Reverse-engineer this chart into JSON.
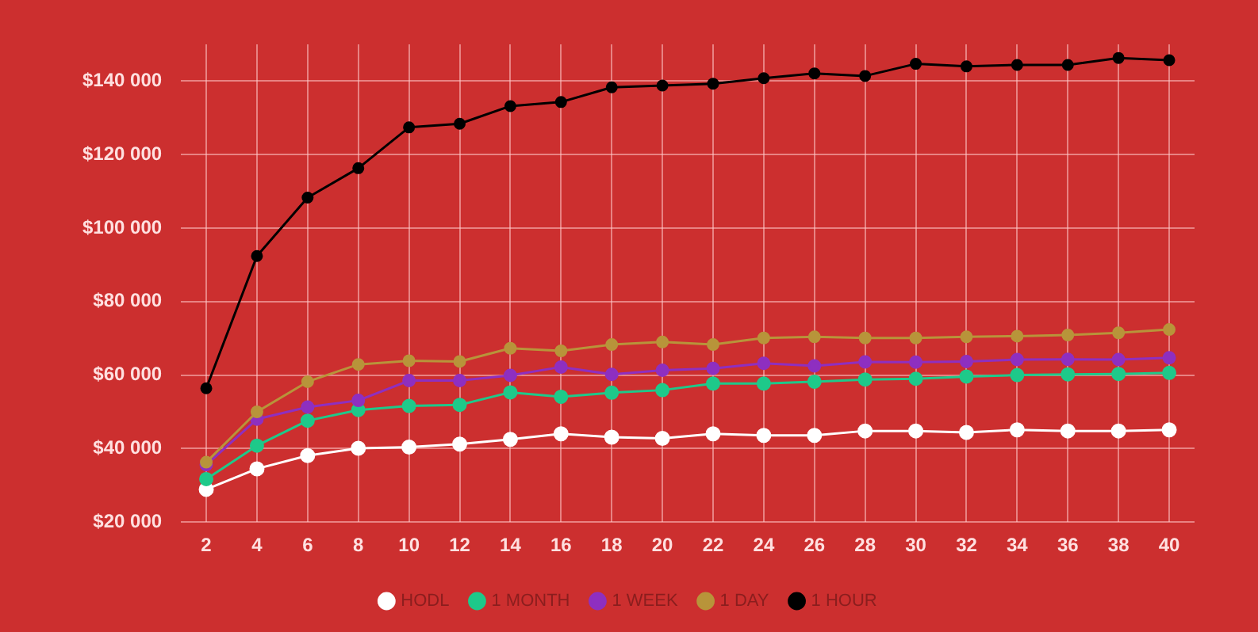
{
  "chart_data": {
    "type": "line",
    "x": [
      2,
      4,
      6,
      8,
      10,
      12,
      14,
      16,
      18,
      20,
      22,
      24,
      26,
      28,
      30,
      32,
      34,
      36,
      38,
      40
    ],
    "xlim": [
      1,
      41
    ],
    "xticks": [
      2,
      4,
      6,
      8,
      10,
      12,
      14,
      16,
      18,
      20,
      22,
      24,
      26,
      28,
      30,
      32,
      34,
      36,
      38,
      40
    ],
    "ylim": [
      20000,
      150000
    ],
    "yticks": [
      {
        "value": 20000,
        "label": "$20 000"
      },
      {
        "value": 40000,
        "label": "$40 000"
      },
      {
        "value": 60000,
        "label": "$60 000"
      },
      {
        "value": 80000,
        "label": "$80 000"
      },
      {
        "value": 100000,
        "label": "$100 000"
      },
      {
        "value": 120000,
        "label": "$120 000"
      },
      {
        "value": 140000,
        "label": "$140 000"
      }
    ],
    "grid": true,
    "legend": "bottom",
    "marker": "circle",
    "line_style": "solid",
    "series": [
      {
        "name": "HODL",
        "color": "#ffffff",
        "values": [
          28900,
          34500,
          38100,
          40100,
          40400,
          41200,
          42500,
          44000,
          43100,
          42800,
          44000,
          43600,
          43600,
          44800,
          44800,
          44400,
          45100,
          44800,
          44800,
          45100
        ]
      },
      {
        "name": "1 MONTH",
        "color": "#1ec98a",
        "values": [
          31700,
          40800,
          47600,
          50500,
          51600,
          51900,
          55300,
          54100,
          55200,
          55900,
          57700,
          57700,
          58200,
          58800,
          59000,
          59600,
          60000,
          60200,
          60300,
          60600
        ]
      },
      {
        "name": "1 WEEK",
        "color": "#8e2fc0",
        "values": [
          35600,
          48000,
          51300,
          53100,
          58500,
          58500,
          59900,
          62200,
          60200,
          61300,
          61800,
          63200,
          62500,
          63600,
          63500,
          63700,
          64200,
          64300,
          64200,
          64700
        ]
      },
      {
        "name": "1 DAY",
        "color": "#b8943a",
        "values": [
          36300,
          50000,
          58200,
          62900,
          63900,
          63700,
          67300,
          66600,
          68300,
          69000,
          68300,
          70100,
          70400,
          70100,
          70100,
          70400,
          70600,
          70900,
          71500,
          72400
        ]
      },
      {
        "name": "1 HOUR",
        "color": "#000000",
        "values": [
          56400,
          92400,
          108300,
          116300,
          127400,
          128400,
          133200,
          134300,
          138300,
          138800,
          139300,
          140800,
          142100,
          141400,
          144700,
          144000,
          144400,
          144400,
          146300,
          145700
        ]
      }
    ]
  }
}
